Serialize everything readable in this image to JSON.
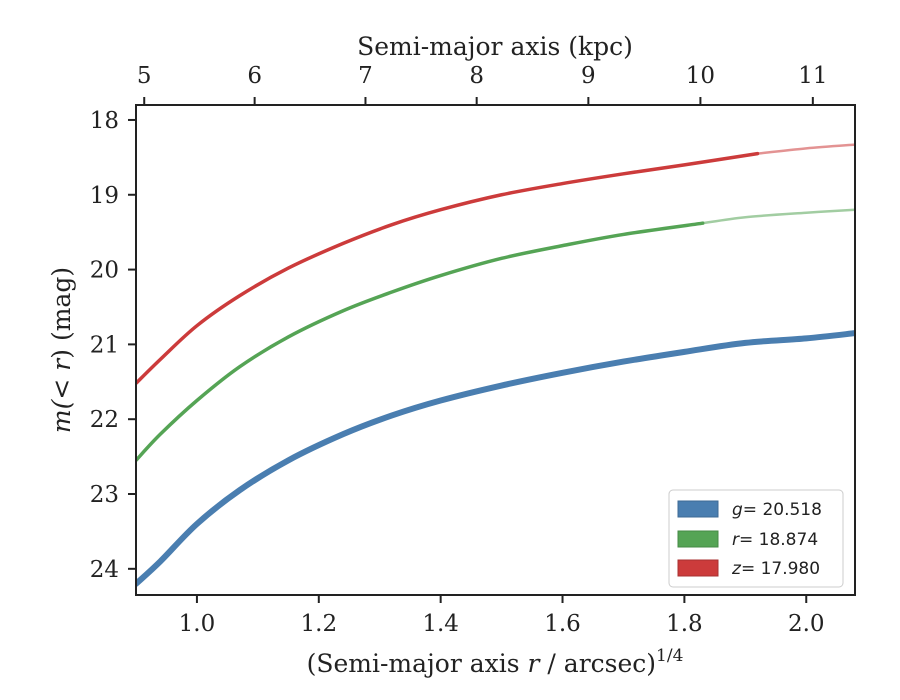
{
  "chart_data": {
    "type": "line",
    "xlabel": "(Semi-major axis r / arcsec)^1/4",
    "xlabel_parts": {
      "pre": "(Semi-major axis ",
      "var": "r",
      "post": " / arcsec)",
      "sup": "1/4"
    },
    "x2label": "Semi-major axis (kpc)",
    "ylabel": "m(<r) (mag)",
    "ylabel_parts": {
      "a": "m(",
      "b": "< r",
      "c": ") (mag)"
    },
    "xlim": [
      0.9,
      2.08
    ],
    "ylim": [
      24.35,
      17.8
    ],
    "y_inverted": true,
    "x_ticks": [
      1.0,
      1.2,
      1.4,
      1.6,
      1.8,
      2.0
    ],
    "x_tick_labels": [
      "1.0",
      "1.2",
      "1.4",
      "1.6",
      "1.8",
      "2.0"
    ],
    "y_ticks": [
      18,
      19,
      20,
      21,
      22,
      23,
      24
    ],
    "y_tick_labels": [
      "18",
      "19",
      "20",
      "21",
      "22",
      "23",
      "24"
    ],
    "x2_ticks": [
      5,
      6,
      7,
      8,
      9,
      10,
      11
    ],
    "x2_tick_labels": [
      "5",
      "6",
      "7",
      "8",
      "9",
      "10",
      "11"
    ],
    "x2_positions": [
      0.9135,
      1.0947,
      1.2766,
      1.4591,
      1.6424,
      1.8263,
      2.0108
    ],
    "grid": false,
    "legend_position": "lower-right",
    "series": [
      {
        "name": "g = 20.518",
        "legend_var": "g",
        "legend_val": "= 20.518",
        "color": "#4a7eb0",
        "width": 6,
        "solid_until": 2.08,
        "x": [
          0.9,
          0.94,
          1.0,
          1.07,
          1.15,
          1.24,
          1.32,
          1.4,
          1.5,
          1.6,
          1.7,
          1.8,
          1.9,
          2.0,
          2.08
        ],
        "y": [
          24.2,
          23.9,
          23.4,
          22.95,
          22.55,
          22.2,
          21.95,
          21.75,
          21.55,
          21.38,
          21.23,
          21.1,
          20.98,
          20.92,
          20.85
        ]
      },
      {
        "name": "r = 18.874",
        "legend_var": "r",
        "legend_val": "= 18.874",
        "color": "#55a455",
        "width": 3.5,
        "solid_until": 1.83,
        "x": [
          0.9,
          0.94,
          1.0,
          1.07,
          1.15,
          1.24,
          1.32,
          1.4,
          1.5,
          1.6,
          1.7,
          1.83,
          1.9,
          2.0,
          2.08
        ],
        "y": [
          22.55,
          22.2,
          21.75,
          21.3,
          20.9,
          20.55,
          20.3,
          20.08,
          19.85,
          19.68,
          19.53,
          19.38,
          19.3,
          19.24,
          19.2
        ]
      },
      {
        "name": "z = 17.980",
        "legend_var": "z",
        "legend_val": "= 17.980",
        "color": "#cc3b3b",
        "width": 3.5,
        "solid_until": 1.92,
        "x": [
          0.9,
          0.94,
          1.0,
          1.07,
          1.15,
          1.24,
          1.32,
          1.4,
          1.5,
          1.6,
          1.7,
          1.8,
          1.92,
          2.0,
          2.08
        ],
        "y": [
          21.52,
          21.2,
          20.75,
          20.35,
          19.98,
          19.65,
          19.4,
          19.2,
          19.0,
          18.85,
          18.72,
          18.6,
          18.45,
          18.38,
          18.33
        ]
      }
    ]
  }
}
